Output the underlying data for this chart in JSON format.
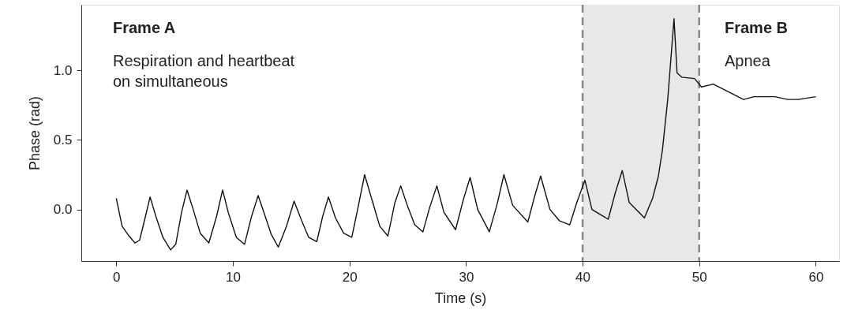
{
  "chart_data": {
    "type": "line",
    "xlabel": "Time (s)",
    "ylabel": "Phase (rad)",
    "xlim": [
      -3,
      62
    ],
    "ylim": [
      -0.37,
      1.47
    ],
    "xticks": [
      0,
      10,
      20,
      30,
      40,
      50,
      60
    ],
    "yticks": [
      {
        "value": 0,
        "label": "0.0"
      },
      {
        "value": 0.5,
        "label": "0.5"
      },
      {
        "value": 1,
        "label": "1.0"
      }
    ],
    "grid": false,
    "marker": "none",
    "line_style": "solid",
    "series": [
      {
        "color": "#111111",
        "x": [
          0,
          0.5,
          1.0,
          1.6,
          2.0,
          2.5,
          2.9,
          3.4,
          4.0,
          4.66,
          5.1,
          5.6,
          6.07,
          6.6,
          7.2,
          7.94,
          8.6,
          9.12,
          9.6,
          10.3,
          11.0,
          11.6,
          12.17,
          12.7,
          13.3,
          13.9,
          14.6,
          15.25,
          15.9,
          16.5,
          17.2,
          17.7,
          18.2,
          18.8,
          19.5,
          20.2,
          20.7,
          21.3,
          22.0,
          22.6,
          23.3,
          23.9,
          24.4,
          25.0,
          25.6,
          26.3,
          26.9,
          27.5,
          28.1,
          29.1,
          29.8,
          30.35,
          31.0,
          32.0,
          32.7,
          33.25,
          34.0,
          35.3,
          35.9,
          36.4,
          37.2,
          38.0,
          38.9,
          39.5,
          40.2,
          40.8,
          42.2,
          42.8,
          43.4,
          44.0,
          45.3,
          46.0,
          46.5,
          46.85,
          47.3,
          47.84,
          48.1,
          48.5,
          49.6,
          50.2,
          51.2,
          52.4,
          53.8,
          54.7,
          56.5,
          57.6,
          58.5,
          60
        ],
        "values": [
          0.08,
          -0.12,
          -0.18,
          -0.24,
          -0.22,
          -0.05,
          0.09,
          -0.05,
          -0.2,
          -0.29,
          -0.25,
          -0.02,
          0.14,
          0.0,
          -0.17,
          -0.24,
          -0.05,
          0.14,
          -0.02,
          -0.2,
          -0.25,
          -0.05,
          0.1,
          -0.03,
          -0.18,
          -0.27,
          -0.12,
          0.06,
          -0.08,
          -0.2,
          -0.23,
          -0.05,
          0.09,
          -0.06,
          -0.17,
          -0.2,
          0.0,
          0.25,
          0.05,
          -0.12,
          -0.19,
          0.05,
          0.17,
          0.02,
          -0.11,
          -0.16,
          0.02,
          0.17,
          -0.02,
          -0.145,
          0.08,
          0.23,
          0.0,
          -0.16,
          0.05,
          0.25,
          0.03,
          -0.09,
          0.1,
          0.24,
          0.0,
          -0.08,
          -0.11,
          0.05,
          0.21,
          0.0,
          -0.07,
          0.12,
          0.28,
          0.05,
          -0.06,
          0.08,
          0.24,
          0.43,
          0.79,
          1.37,
          0.98,
          0.95,
          0.94,
          0.88,
          0.9,
          0.85,
          0.79,
          0.81,
          0.81,
          0.79,
          0.79,
          0.81
        ]
      }
    ],
    "bands": [
      {
        "axis": "x",
        "from": 40,
        "to": 50,
        "color": "#e8e8e8"
      }
    ],
    "ref_lines": [
      {
        "axis": "x",
        "value": 40,
        "color": "#808890",
        "line_style": "dashed"
      },
      {
        "axis": "x",
        "value": 50,
        "color": "#808890",
        "line_style": "dashed"
      }
    ],
    "annotations": [
      "Frame A",
      "Respiration and heartbeat\non simultaneous",
      "Frame B",
      "Apnea"
    ]
  }
}
